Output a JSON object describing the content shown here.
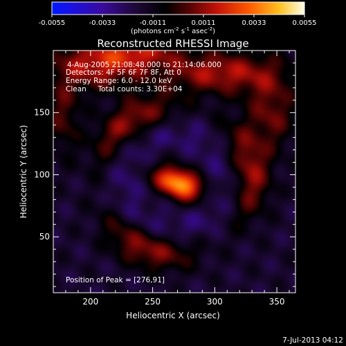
{
  "chart_data": {
    "type": "heatmap",
    "title": "Reconstructed RHESSI Image",
    "xlabel": "Heliocentric X (arcsec)",
    "ylabel": "Heliocentric Y (arcsec)",
    "xlim": [
      170,
      365
    ],
    "ylim": [
      5,
      200
    ],
    "x_ticks": [
      200,
      250,
      300,
      350
    ],
    "y_ticks": [
      50,
      100,
      150
    ],
    "colorbar": {
      "min": -0.0055,
      "max": 0.0055,
      "tick_values": [
        -0.0055,
        -0.0033,
        -0.0011,
        0.0011,
        0.0033,
        0.0055
      ],
      "tick_labels": [
        "-0.0055",
        "-0.0033",
        "-0.0011",
        "0.0011",
        "0.0033",
        "0.0055"
      ],
      "units_label": "(photons cm",
      "units_exp1": "-2",
      "units_mid": " s",
      "units_exp2": "-1",
      "units_mid2": " asec",
      "units_exp3": "-2",
      "units_end": ")"
    },
    "annotations": [
      "4-Aug-2005 21:08:48.000 to 21:14:06.000",
      "Detectors: 4F 5F 6F 7F 8F, Att 0",
      "Energy Range: 6.0 - 12.0 keV",
      "Clean     Total counts: 3.30E+04"
    ],
    "peak_label": "Position of Peak = [276,91]",
    "peak": {
      "x": 276,
      "y": 91,
      "value": 0.0055
    },
    "intensity_features": [
      {
        "kind": "source",
        "x": 271,
        "y": 93,
        "sx": 14,
        "sy": 8,
        "rot": -22,
        "amp": 0.0058
      },
      {
        "kind": "ring",
        "x": 268,
        "y": 95,
        "r": 62,
        "w": 11,
        "amp": 0.0026
      },
      {
        "kind": "blob",
        "x": 205,
        "y": 188,
        "sx": 26,
        "sy": 14,
        "amp": 0.003
      },
      {
        "kind": "blob",
        "x": 305,
        "y": 182,
        "sx": 34,
        "sy": 12,
        "amp": 0.003
      },
      {
        "kind": "blob",
        "x": 240,
        "y": 200,
        "sx": 24,
        "sy": 10,
        "amp": 0.0024
      },
      {
        "kind": "blob",
        "x": 345,
        "y": 150,
        "sx": 14,
        "sy": 22,
        "amp": 0.0022
      },
      {
        "kind": "blob",
        "x": 178,
        "y": 148,
        "sx": 10,
        "sy": 22,
        "amp": 0.0018
      }
    ],
    "background": -0.0016
  },
  "footer": {
    "timestamp": "7-Jul-2013 04:12"
  }
}
